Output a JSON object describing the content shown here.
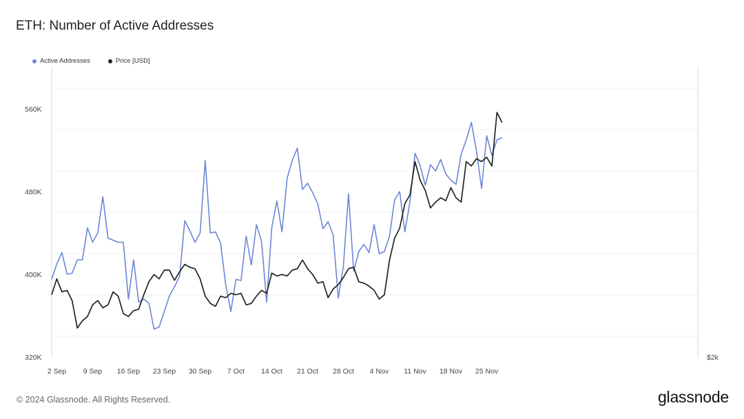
{
  "title": "ETH: Number of Active Addresses",
  "footer": {
    "copyright": "© 2024 Glassnode. All Rights Reserved.",
    "brand": "glassnode"
  },
  "legend": [
    {
      "name": "Active Addresses",
      "color": "#6b86d6"
    },
    {
      "name": "Price [USD]",
      "color": "#222222"
    }
  ],
  "chart_data": {
    "type": "line",
    "title": "ETH: Number of Active Addresses",
    "legend_position": "top-left",
    "grid": true,
    "x_tick_labels": [
      "2 Sep",
      "9 Sep",
      "16 Sep",
      "23 Sep",
      "30 Sep",
      "7 Oct",
      "14 Oct",
      "21 Oct",
      "28 Oct",
      "4 Nov",
      "11 Nov",
      "18 Nov",
      "25 Nov"
    ],
    "y_left": {
      "ticks": [
        "320K",
        "400K",
        "480K",
        "560K"
      ],
      "tick_values": [
        320000,
        400000,
        480000,
        560000
      ],
      "range": [
        320000,
        600000
      ]
    },
    "y_right": {
      "ticks": [
        "$2k"
      ]
    },
    "dates": [
      "2024-09-01",
      "2024-09-02",
      "2024-09-03",
      "2024-09-04",
      "2024-09-05",
      "2024-09-06",
      "2024-09-07",
      "2024-09-08",
      "2024-09-09",
      "2024-09-10",
      "2024-09-11",
      "2024-09-12",
      "2024-09-13",
      "2024-09-14",
      "2024-09-15",
      "2024-09-16",
      "2024-09-17",
      "2024-09-18",
      "2024-09-19",
      "2024-09-20",
      "2024-09-21",
      "2024-09-22",
      "2024-09-23",
      "2024-09-24",
      "2024-09-25",
      "2024-09-26",
      "2024-09-27",
      "2024-09-28",
      "2024-09-29",
      "2024-09-30",
      "2024-10-01",
      "2024-10-02",
      "2024-10-03",
      "2024-10-04",
      "2024-10-05",
      "2024-10-06",
      "2024-10-07",
      "2024-10-08",
      "2024-10-09",
      "2024-10-10",
      "2024-10-11",
      "2024-10-12",
      "2024-10-13",
      "2024-10-14",
      "2024-10-15",
      "2024-10-16",
      "2024-10-17",
      "2024-10-18",
      "2024-10-19",
      "2024-10-20",
      "2024-10-21",
      "2024-10-22",
      "2024-10-23",
      "2024-10-24",
      "2024-10-25",
      "2024-10-26",
      "2024-10-27",
      "2024-10-28",
      "2024-10-29",
      "2024-10-30",
      "2024-10-31",
      "2024-11-01",
      "2024-11-02",
      "2024-11-03",
      "2024-11-04",
      "2024-11-05",
      "2024-11-06",
      "2024-11-07",
      "2024-11-08",
      "2024-11-09",
      "2024-11-10",
      "2024-11-11",
      "2024-11-12",
      "2024-11-13",
      "2024-11-14",
      "2024-11-15",
      "2024-11-16",
      "2024-11-17",
      "2024-11-18",
      "2024-11-19",
      "2024-11-20",
      "2024-11-21",
      "2024-11-22",
      "2024-11-23",
      "2024-11-24",
      "2024-11-25",
      "2024-11-26",
      "2024-11-27",
      "2024-11-28"
    ],
    "series": [
      {
        "name": "Active Addresses",
        "color": "#6b86d6",
        "axis": "left",
        "values": [
          395000,
          410000,
          421000,
          400000,
          401000,
          414000,
          414000,
          445000,
          431000,
          440000,
          475000,
          435000,
          433000,
          431000,
          431000,
          376000,
          414000,
          373000,
          376000,
          372000,
          347000,
          349000,
          364000,
          379000,
          388000,
          398000,
          452000,
          442000,
          431000,
          440000,
          510000,
          440000,
          441000,
          430000,
          390000,
          364000,
          395000,
          394000,
          437000,
          409000,
          448000,
          432000,
          373000,
          445000,
          471000,
          441000,
          493000,
          510000,
          522000,
          482000,
          488000,
          479000,
          468000,
          444000,
          451000,
          438000,
          377000,
          408000,
          478000,
          403000,
          422000,
          429000,
          421000,
          448000,
          420000,
          422000,
          437000,
          472000,
          480000,
          441000,
          470000,
          517000,
          505000,
          486000,
          506000,
          500000,
          511000,
          497000,
          491000,
          487000,
          516000,
          530000,
          547000,
          519000,
          483000,
          534000,
          515000,
          530000,
          532000
        ]
      },
      {
        "name": "Price [USD]",
        "color": "#222222",
        "axis": "right",
        "values": [
          2430,
          2540,
          2450,
          2460,
          2390,
          2200,
          2250,
          2280,
          2360,
          2390,
          2340,
          2360,
          2450,
          2420,
          2300,
          2280,
          2320,
          2330,
          2430,
          2520,
          2570,
          2540,
          2600,
          2600,
          2530,
          2590,
          2640,
          2620,
          2610,
          2540,
          2420,
          2370,
          2350,
          2420,
          2410,
          2440,
          2430,
          2440,
          2360,
          2370,
          2420,
          2460,
          2440,
          2580,
          2560,
          2570,
          2560,
          2600,
          2610,
          2670,
          2610,
          2570,
          2510,
          2520,
          2410,
          2470,
          2500,
          2550,
          2610,
          2620,
          2520,
          2510,
          2490,
          2460,
          2400,
          2430,
          2670,
          2820,
          2890,
          3060,
          3120,
          3350,
          3220,
          3150,
          3030,
          3070,
          3100,
          3080,
          3170,
          3100,
          3070,
          3350,
          3320,
          3370,
          3350,
          3380,
          3320,
          3690,
          3620
        ]
      }
    ]
  }
}
